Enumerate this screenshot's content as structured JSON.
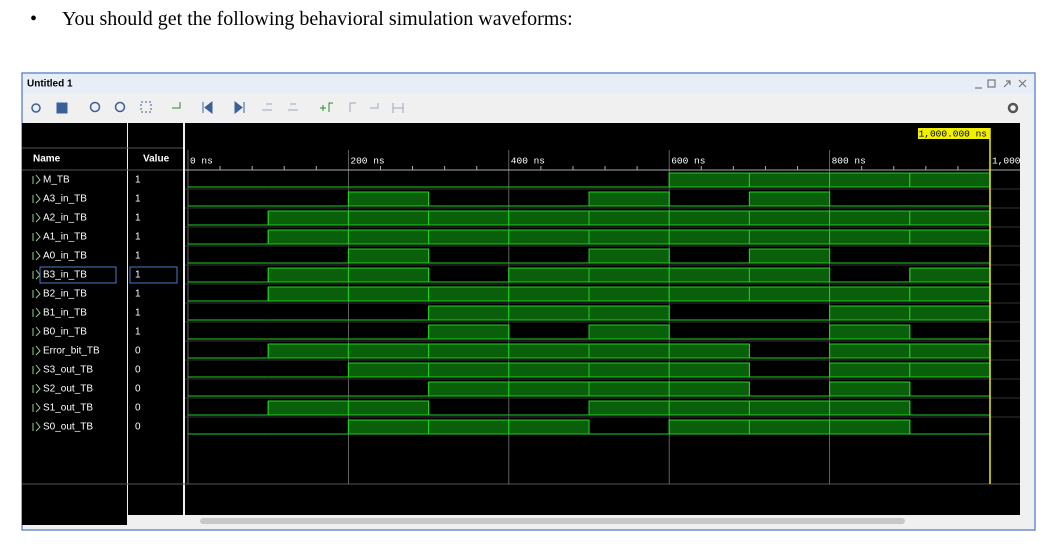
{
  "instruction": "You should get the following behavioral simulation waveforms:",
  "window": {
    "title": "Untitled 1",
    "columns": {
      "name": "Name",
      "value": "Value"
    },
    "xlim": [
      0,
      1000
    ],
    "xticks": [
      {
        "value": 0,
        "label": "0 ns"
      },
      {
        "value": 200,
        "label": "200 ns"
      },
      {
        "value": 400,
        "label": "400 ns"
      },
      {
        "value": 600,
        "label": "600 ns"
      },
      {
        "value": 800,
        "label": "800 ns"
      },
      {
        "value": 1000,
        "label": "1,000"
      }
    ],
    "cursor": {
      "value": 1000,
      "label": "1,000.000 ns"
    },
    "signals": [
      {
        "name": "M_TB",
        "value": "1",
        "levels": [
          0,
          0,
          0,
          0,
          0,
          0,
          1,
          1,
          1,
          1
        ]
      },
      {
        "name": "A3_in_TB",
        "value": "1",
        "levels": [
          0,
          0,
          1,
          0,
          0,
          1,
          0,
          1,
          0,
          0
        ]
      },
      {
        "name": "A2_in_TB",
        "value": "1",
        "levels": [
          0,
          1,
          1,
          1,
          1,
          1,
          1,
          1,
          1,
          1
        ]
      },
      {
        "name": "A1_in_TB",
        "value": "1",
        "levels": [
          0,
          1,
          1,
          1,
          1,
          1,
          1,
          1,
          1,
          1
        ]
      },
      {
        "name": "A0_in_TB",
        "value": "1",
        "levels": [
          0,
          0,
          1,
          0,
          0,
          1,
          0,
          1,
          0,
          0
        ]
      },
      {
        "name": "B3_in_TB",
        "value": "1",
        "levels": [
          0,
          1,
          1,
          0,
          1,
          1,
          1,
          1,
          0,
          1
        ]
      },
      {
        "name": "B2_in_TB",
        "value": "1",
        "levels": [
          0,
          1,
          1,
          1,
          1,
          1,
          1,
          1,
          1,
          1
        ]
      },
      {
        "name": "B1_in_TB",
        "value": "1",
        "levels": [
          0,
          0,
          0,
          1,
          1,
          1,
          0,
          0,
          1,
          1
        ]
      },
      {
        "name": "B0_in_TB",
        "value": "1",
        "levels": [
          0,
          0,
          0,
          1,
          0,
          1,
          0,
          0,
          1,
          0
        ]
      },
      {
        "name": "Error_bit_TB",
        "value": "0",
        "levels": [
          0,
          1,
          1,
          1,
          1,
          1,
          1,
          0,
          1,
          1
        ]
      },
      {
        "name": "S3_out_TB",
        "value": "0",
        "levels": [
          0,
          0,
          1,
          1,
          1,
          1,
          1,
          0,
          1,
          1
        ]
      },
      {
        "name": "S2_out_TB",
        "value": "0",
        "levels": [
          0,
          0,
          0,
          1,
          1,
          1,
          1,
          0,
          1,
          0
        ]
      },
      {
        "name": "S1_out_TB",
        "value": "0",
        "levels": [
          0,
          1,
          1,
          0,
          0,
          1,
          1,
          1,
          1,
          0
        ]
      },
      {
        "name": "S0_out_TB",
        "value": "0",
        "levels": [
          0,
          0,
          1,
          1,
          1,
          0,
          1,
          1,
          1,
          0
        ]
      }
    ]
  }
}
